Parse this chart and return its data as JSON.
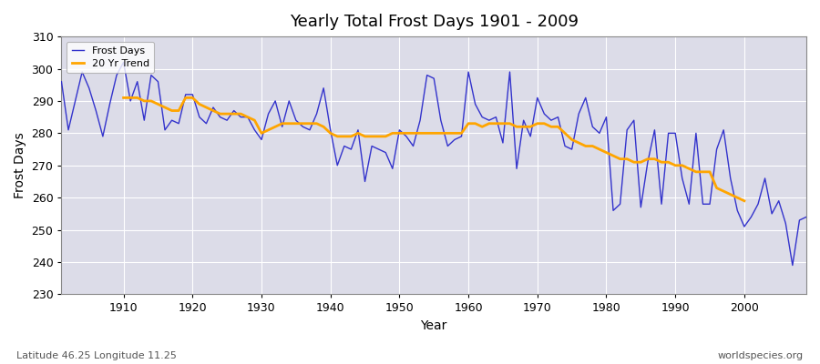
{
  "title": "Yearly Total Frost Days 1901 - 2009",
  "xlabel": "Year",
  "ylabel": "Frost Days",
  "subtitle": "Latitude 46.25 Longitude 11.25",
  "watermark": "worldspecies.org",
  "ylim": [
    230,
    310
  ],
  "xlim": [
    1901,
    2009
  ],
  "yticks": [
    230,
    240,
    250,
    260,
    270,
    280,
    290,
    300,
    310
  ],
  "xticks": [
    1910,
    1920,
    1930,
    1940,
    1950,
    1960,
    1970,
    1980,
    1990,
    2000
  ],
  "frost_color": "#3333cc",
  "trend_color": "#ffa500",
  "bg_color": "#dcdce8",
  "fig_color": "#ffffff",
  "grid_color": "#ffffff",
  "years": [
    1901,
    1902,
    1903,
    1904,
    1905,
    1906,
    1907,
    1908,
    1909,
    1910,
    1911,
    1912,
    1913,
    1914,
    1915,
    1916,
    1917,
    1918,
    1919,
    1920,
    1921,
    1922,
    1923,
    1924,
    1925,
    1926,
    1927,
    1928,
    1929,
    1930,
    1931,
    1932,
    1933,
    1934,
    1935,
    1936,
    1937,
    1938,
    1939,
    1940,
    1941,
    1942,
    1943,
    1944,
    1945,
    1946,
    1947,
    1948,
    1949,
    1950,
    1951,
    1952,
    1953,
    1954,
    1955,
    1956,
    1957,
    1958,
    1959,
    1960,
    1961,
    1962,
    1963,
    1964,
    1965,
    1966,
    1967,
    1968,
    1969,
    1970,
    1971,
    1972,
    1973,
    1974,
    1975,
    1976,
    1977,
    1978,
    1979,
    1980,
    1981,
    1982,
    1983,
    1984,
    1985,
    1986,
    1987,
    1988,
    1989,
    1990,
    1991,
    1992,
    1993,
    1994,
    1995,
    1996,
    1997,
    1998,
    1999,
    2000,
    2001,
    2002,
    2003,
    2004,
    2005,
    2006,
    2007,
    2008,
    2009
  ],
  "frost_days": [
    296,
    281,
    290,
    299,
    294,
    287,
    279,
    289,
    298,
    302,
    290,
    296,
    284,
    298,
    296,
    281,
    284,
    283,
    292,
    292,
    285,
    283,
    288,
    285,
    284,
    287,
    285,
    285,
    281,
    278,
    286,
    290,
    282,
    290,
    284,
    282,
    281,
    286,
    294,
    281,
    270,
    276,
    275,
    281,
    265,
    276,
    275,
    274,
    269,
    281,
    279,
    276,
    284,
    298,
    297,
    284,
    276,
    278,
    279,
    299,
    289,
    285,
    284,
    285,
    277,
    299,
    269,
    284,
    279,
    291,
    286,
    284,
    285,
    276,
    275,
    286,
    291,
    282,
    280,
    285,
    256,
    258,
    281,
    284,
    257,
    271,
    281,
    258,
    280,
    280,
    266,
    258,
    280,
    258,
    258,
    275,
    281,
    266,
    256,
    251,
    254,
    258,
    266,
    255,
    259,
    252,
    239,
    253,
    254
  ],
  "trend_years": [
    1910,
    1911,
    1912,
    1913,
    1914,
    1915,
    1916,
    1917,
    1918,
    1919,
    1920,
    1921,
    1922,
    1923,
    1924,
    1925,
    1926,
    1927,
    1928,
    1929,
    1930,
    1931,
    1932,
    1933,
    1934,
    1935,
    1936,
    1937,
    1938,
    1939,
    1940,
    1941,
    1942,
    1943,
    1944,
    1945,
    1946,
    1947,
    1948,
    1949,
    1950,
    1951,
    1952,
    1953,
    1954,
    1955,
    1956,
    1957,
    1958,
    1959,
    1960,
    1961,
    1962,
    1963,
    1964,
    1965,
    1966,
    1967,
    1968,
    1969,
    1970,
    1971,
    1972,
    1973,
    1974,
    1975,
    1976,
    1977,
    1978,
    1979,
    1980,
    1981,
    1982,
    1983,
    1984,
    1985,
    1986,
    1987,
    1988,
    1989,
    1990,
    1991,
    1992,
    1993,
    1994,
    1995,
    1996,
    1997,
    1998,
    1999,
    2000
  ],
  "trend_values": [
    291,
    291,
    291,
    290,
    290,
    289,
    288,
    287,
    287,
    291,
    291,
    289,
    288,
    287,
    286,
    286,
    286,
    286,
    285,
    284,
    280,
    281,
    282,
    283,
    283,
    283,
    283,
    283,
    283,
    282,
    280,
    279,
    279,
    279,
    280,
    279,
    279,
    279,
    279,
    280,
    280,
    280,
    280,
    280,
    280,
    280,
    280,
    280,
    280,
    280,
    283,
    283,
    282,
    283,
    283,
    283,
    283,
    282,
    282,
    282,
    283,
    283,
    282,
    282,
    280,
    278,
    277,
    276,
    276,
    275,
    274,
    273,
    272,
    272,
    271,
    271,
    272,
    272,
    271,
    271,
    270,
    270,
    269,
    268,
    268,
    268,
    263,
    262,
    261,
    260,
    259
  ]
}
